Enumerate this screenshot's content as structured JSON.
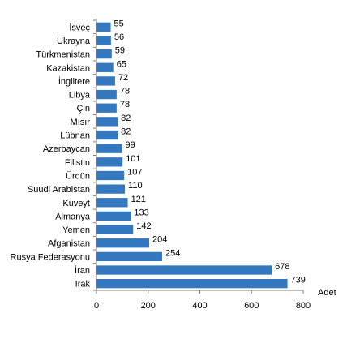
{
  "chart_data": {
    "type": "bar",
    "orientation": "horizontal",
    "categories": [
      "İsveç",
      "Ukrayna",
      "Türkmenistan",
      "Kazakistan",
      "İngiltere",
      "Libya",
      "Çin",
      "Mısır",
      "Lübnan",
      "Azerbaycan",
      "Filistin",
      "Ürdün",
      "Suudi Arabistan",
      "Kuveyt",
      "Almanya",
      "Yemen",
      "Afganistan",
      "Rusya Federasyonu",
      "İran",
      "Irak"
    ],
    "values": [
      55,
      56,
      59,
      65,
      72,
      78,
      78,
      82,
      82,
      99,
      101,
      107,
      110,
      121,
      133,
      142,
      204,
      254,
      678,
      739
    ],
    "xlim": [
      0,
      800
    ],
    "x_ticks": [
      0,
      200,
      400,
      600,
      800
    ],
    "unit_label": "Adet",
    "title": "",
    "bar_color": "#3478bf",
    "grid": false,
    "legend": "none"
  }
}
